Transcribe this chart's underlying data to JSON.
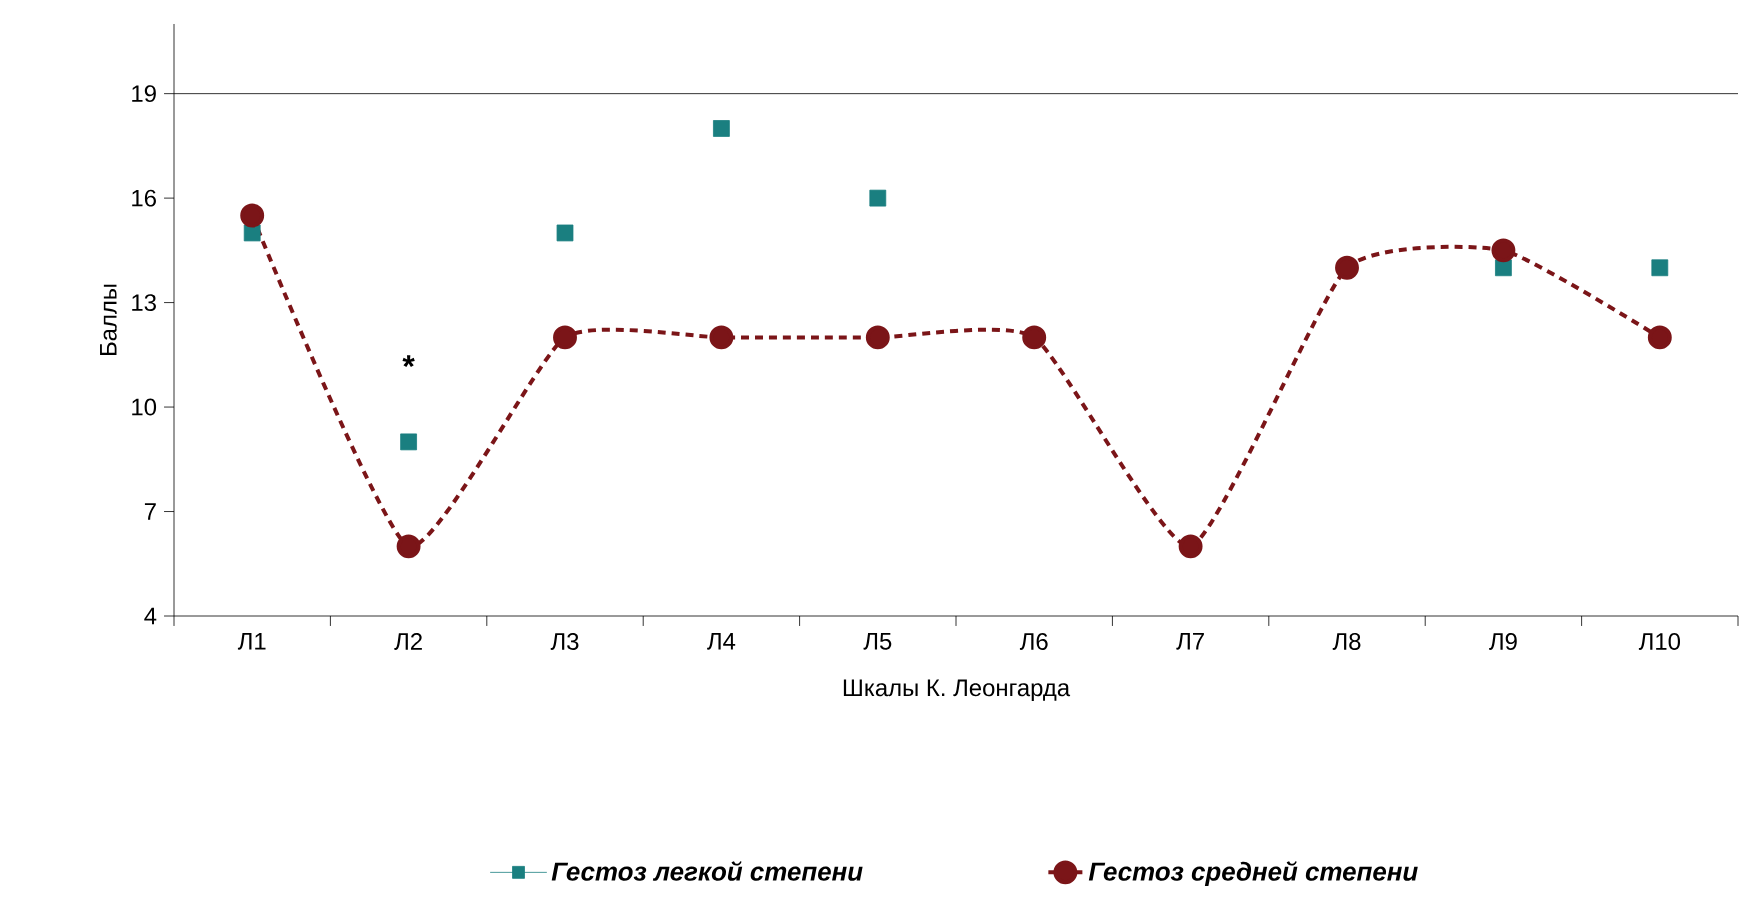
{
  "chart_data": {
    "type": "line",
    "xlabel": "Шкалы К. Леонгарда",
    "ylabel": "Баллы",
    "categories": [
      "Л1",
      "Л2",
      "Л3",
      "Л4",
      "Л5",
      "Л6",
      "Л7",
      "Л8",
      "Л9",
      "Л10"
    ],
    "series": [
      {
        "name": "Гестоз легкой степени",
        "type": "scatter",
        "marker": "square",
        "color": "#1a7f80",
        "values": [
          15,
          9,
          15,
          18,
          16,
          null,
          null,
          null,
          14,
          14
        ]
      },
      {
        "name": "Гестоз средней степени",
        "marker": "circle",
        "line_style": "dashed",
        "color": "#7b1518",
        "values": [
          15.5,
          6,
          12,
          12,
          12,
          12,
          6,
          14,
          14.5,
          12
        ]
      }
    ],
    "ylim": [
      4,
      21
    ],
    "yticks": [
      4,
      7,
      10,
      13,
      16,
      19
    ],
    "ref_lines": [
      {
        "axis": "y",
        "value": 19,
        "color": "#000000"
      }
    ],
    "annotations": [
      "*"
    ],
    "legend": "bottom"
  }
}
